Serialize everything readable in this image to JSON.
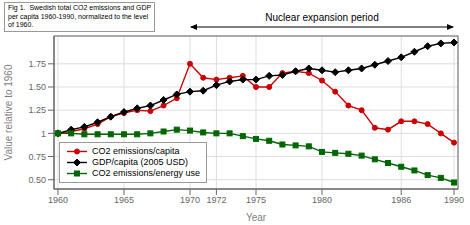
{
  "chart_data": {
    "type": "line",
    "annotations": [
      {
        "text": "Fig 1.  Swedish total CO2 emissions and GDP\nper capita 1960-1990, normalized to the level\nof 1960."
      },
      {
        "text": "Nuclear expansion period",
        "x_start": 1970,
        "x_end": 1990
      }
    ],
    "x_label": "Year",
    "y_label": "Value relative to 1960",
    "x": [
      1960,
      1961,
      1962,
      1963,
      1964,
      1965,
      1966,
      1967,
      1968,
      1969,
      1970,
      1971,
      1972,
      1973,
      1974,
      1975,
      1976,
      1977,
      1978,
      1979,
      1980,
      1981,
      1982,
      1983,
      1984,
      1985,
      1986,
      1987,
      1988,
      1989,
      1990
    ],
    "series": [
      {
        "name": "CO2 emissions/capita",
        "color": "#cc0000",
        "marker": "circle",
        "values": [
          1.0,
          1.02,
          1.05,
          1.1,
          1.18,
          1.22,
          1.25,
          1.24,
          1.3,
          1.38,
          1.75,
          1.6,
          1.58,
          1.6,
          1.62,
          1.5,
          1.5,
          1.65,
          1.67,
          1.65,
          1.57,
          1.45,
          1.3,
          1.25,
          1.06,
          1.04,
          1.13,
          1.13,
          1.1,
          1.0,
          0.9
        ]
      },
      {
        "name": "GDP/capita (2005 USD)",
        "color": "#000000",
        "marker": "diamond",
        "values": [
          1.0,
          1.04,
          1.07,
          1.12,
          1.18,
          1.23,
          1.27,
          1.3,
          1.36,
          1.42,
          1.45,
          1.46,
          1.52,
          1.56,
          1.58,
          1.58,
          1.62,
          1.63,
          1.67,
          1.7,
          1.68,
          1.66,
          1.68,
          1.7,
          1.74,
          1.78,
          1.82,
          1.88,
          1.94,
          1.97,
          1.98
        ]
      },
      {
        "name": "CO2 emissions/energy use",
        "color": "#006600",
        "marker": "square",
        "values": [
          1.0,
          1.0,
          0.99,
          0.99,
          0.99,
          0.99,
          0.99,
          1.0,
          1.02,
          1.04,
          1.03,
          1.01,
          1.0,
          1.0,
          0.97,
          0.94,
          0.92,
          0.88,
          0.87,
          0.86,
          0.8,
          0.79,
          0.78,
          0.76,
          0.72,
          0.68,
          0.64,
          0.6,
          0.55,
          0.52,
          0.47
        ]
      }
    ],
    "xlim": [
      1959.7,
      1990.3
    ],
    "xticks": [
      1960,
      1965,
      1970,
      1972,
      1975,
      1980,
      1986,
      1990
    ],
    "ylim": [
      0.4,
      2.05
    ],
    "yticks": [
      {
        "value": 0.5,
        "label": "0.50"
      },
      0.75,
      1,
      1.25,
      {
        "value": 1.5,
        "label": "1.50"
      },
      1.75
    ],
    "grid": true,
    "legend": "lower left"
  }
}
